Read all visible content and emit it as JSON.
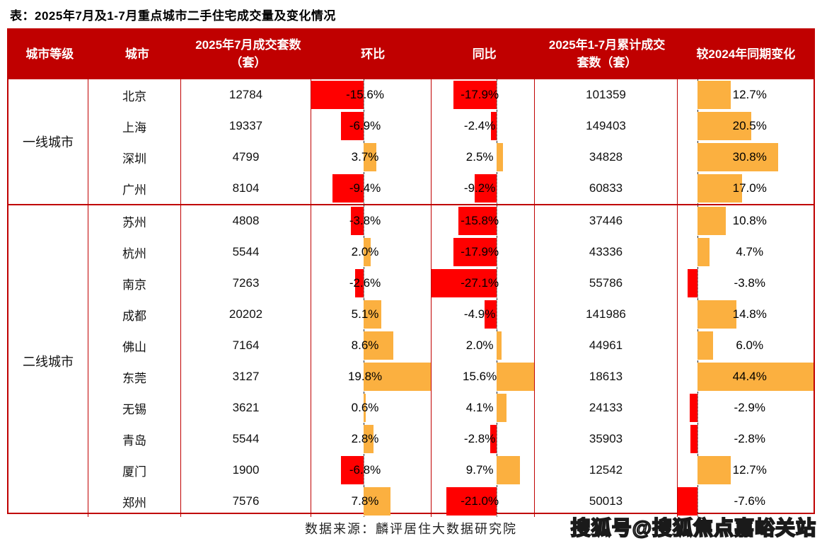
{
  "title": "表：2025年7月及1-7月重点城市二手住宅成交量及变化情况",
  "source_note": "数据来源：麟评居住大数据研究院",
  "watermark": "搜狐号@搜狐焦点嘉峪关站",
  "colors": {
    "header_bg": "#c00000",
    "border": "#c00000",
    "negative_bar": "#ff0000",
    "positive_bar": "#fbb040"
  },
  "chart_data": {
    "type": "table",
    "title": "2025年7月及1-7月重点城市二手住宅成交量及变化情况",
    "columns": [
      "城市等级",
      "城市",
      "2025年7月成交套数（套）",
      "环比",
      "同比",
      "2025年1-7月累计成交套数（套）",
      "较2024年同期变化"
    ],
    "bar_columns_note": "环比 / 同比 / 较2024年同期变化 are in-cell data bars: red extends left of dotted axis for negative values, orange extends right for positive values",
    "bar_ranges": {
      "mom": {
        "min": -15.6,
        "max": 19.8
      },
      "yoy": {
        "min": -27.1,
        "max": 15.6
      },
      "chg": {
        "min": -7.6,
        "max": 44.4
      }
    },
    "groups": [
      {
        "tier": "一线城市",
        "rows": [
          {
            "city": "北京",
            "jul_units": 12784,
            "mom": -15.6,
            "yoy": -17.9,
            "cum_units": 101359,
            "chg": 12.7
          },
          {
            "city": "上海",
            "jul_units": 19337,
            "mom": -6.9,
            "yoy": -2.4,
            "cum_units": 149403,
            "chg": 20.5
          },
          {
            "city": "深圳",
            "jul_units": 4799,
            "mom": 3.7,
            "yoy": 2.5,
            "cum_units": 34828,
            "chg": 30.8
          },
          {
            "city": "广州",
            "jul_units": 8104,
            "mom": -9.4,
            "yoy": -9.2,
            "cum_units": 60833,
            "chg": 17.0
          }
        ]
      },
      {
        "tier": "二线城市",
        "rows": [
          {
            "city": "苏州",
            "jul_units": 4808,
            "mom": -3.8,
            "yoy": -15.8,
            "cum_units": 37446,
            "chg": 10.8
          },
          {
            "city": "杭州",
            "jul_units": 5544,
            "mom": 2.0,
            "yoy": -17.9,
            "cum_units": 43336,
            "chg": 4.7
          },
          {
            "city": "南京",
            "jul_units": 7263,
            "mom": -2.6,
            "yoy": -27.1,
            "cum_units": 55786,
            "chg": -3.8
          },
          {
            "city": "成都",
            "jul_units": 20202,
            "mom": 5.1,
            "yoy": -4.9,
            "cum_units": 141986,
            "chg": 14.8
          },
          {
            "city": "佛山",
            "jul_units": 7164,
            "mom": 8.6,
            "yoy": 2.0,
            "cum_units": 44961,
            "chg": 6.0
          },
          {
            "city": "东莞",
            "jul_units": 3127,
            "mom": 19.8,
            "yoy": 15.6,
            "cum_units": 18613,
            "chg": 44.4
          },
          {
            "city": "无锡",
            "jul_units": 3621,
            "mom": 0.6,
            "yoy": 4.1,
            "cum_units": 24133,
            "chg": -2.9
          },
          {
            "city": "青岛",
            "jul_units": 5544,
            "mom": 2.8,
            "yoy": -2.8,
            "cum_units": 35903,
            "chg": -2.8
          },
          {
            "city": "厦门",
            "jul_units": 1900,
            "mom": -6.8,
            "yoy": 9.7,
            "cum_units": 12542,
            "chg": 12.7
          },
          {
            "city": "郑州",
            "jul_units": 7576,
            "mom": 7.8,
            "yoy": -21.0,
            "cum_units": 50013,
            "chg": -7.6
          }
        ]
      }
    ]
  }
}
